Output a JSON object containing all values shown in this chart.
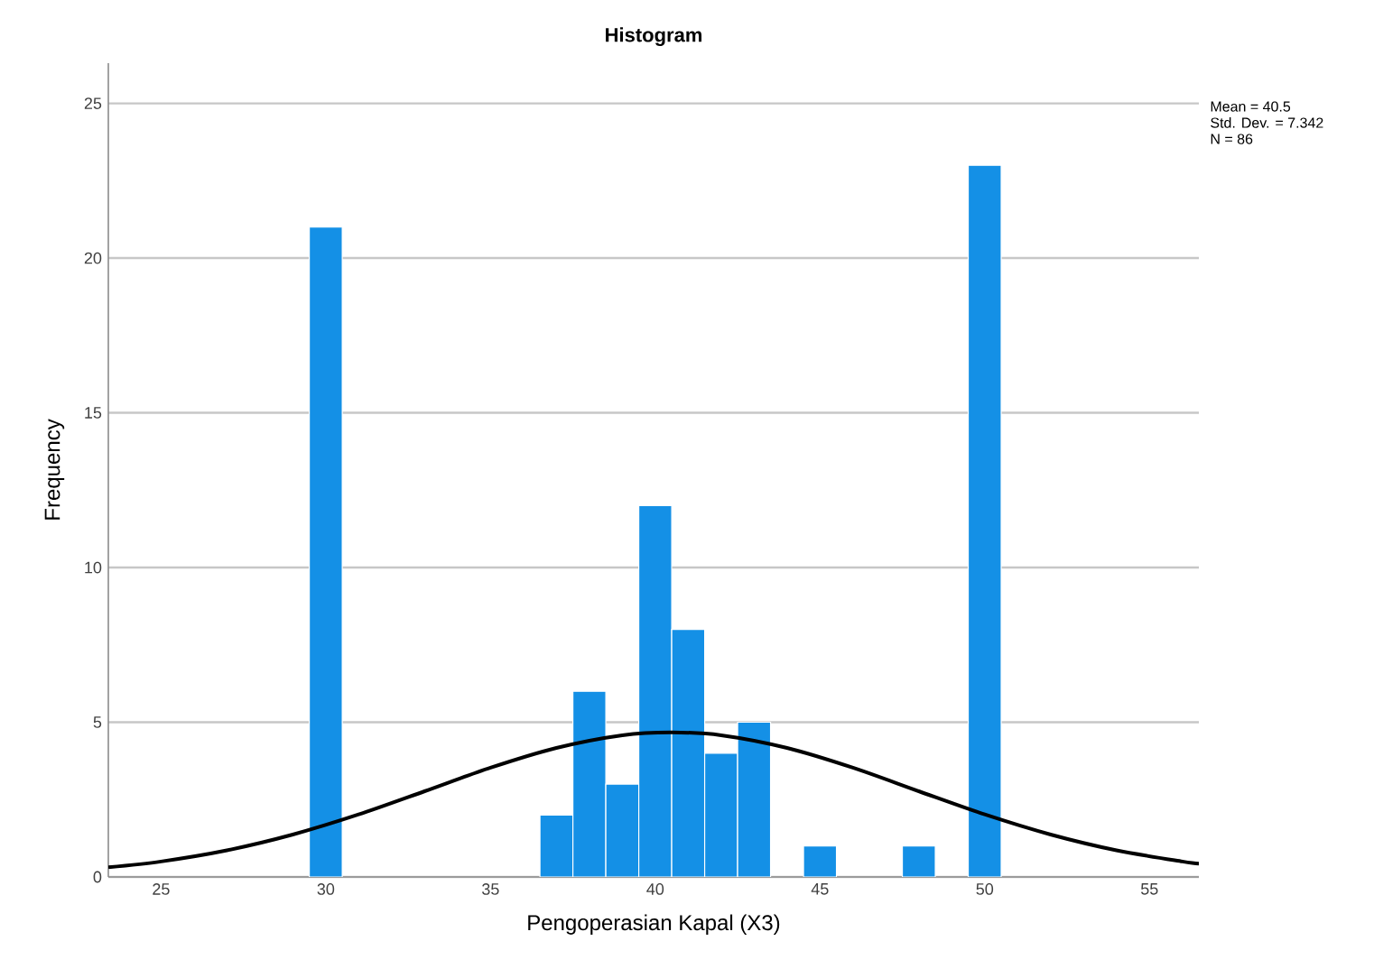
{
  "chart_data": {
    "type": "histogram",
    "title": "Histogram",
    "xlabel": "Pengoperasian Kapal (X3)",
    "ylabel": "Frequency",
    "bins": [
      29.5,
      30.5,
      31.5,
      32.5,
      33.5,
      34.5,
      35.5,
      36.5,
      37.5,
      38.5,
      39.5,
      40.5,
      41.5,
      42.5,
      43.5,
      44.5,
      45.5,
      46.5,
      47.5,
      48.5,
      49.5,
      50.5
    ],
    "values": [
      21,
      0,
      0,
      0,
      0,
      0,
      0,
      2,
      6,
      3,
      12,
      8,
      4,
      5,
      0,
      1,
      0,
      0,
      1,
      0,
      23
    ],
    "color": "#1490e6",
    "series": [
      {
        "type": "line",
        "color": "#000000",
        "x": [
          23.4,
          25,
          27,
          29,
          31,
          33,
          35,
          37,
          39,
          40.5,
          42,
          44,
          46,
          48,
          50,
          52,
          54,
          56,
          56.5
        ],
        "values": [
          0.31,
          0.5,
          0.86,
          1.37,
          2.02,
          2.77,
          3.53,
          4.17,
          4.58,
          4.67,
          4.58,
          4.17,
          3.53,
          2.77,
          2.02,
          1.37,
          0.86,
          0.5,
          0.43
        ]
      }
    ],
    "annotations": [
      "Mean = 40.5",
      "Std. Dev. = 7.342",
      "N = 86"
    ],
    "xlim": [
      23.4,
      56.5
    ],
    "ylim": [
      0,
      26.3
    ],
    "xticks": [
      25,
      30,
      35,
      40,
      45,
      50,
      55
    ],
    "yticks": [
      0,
      5,
      10,
      15,
      20,
      25
    ],
    "grid": "y"
  }
}
